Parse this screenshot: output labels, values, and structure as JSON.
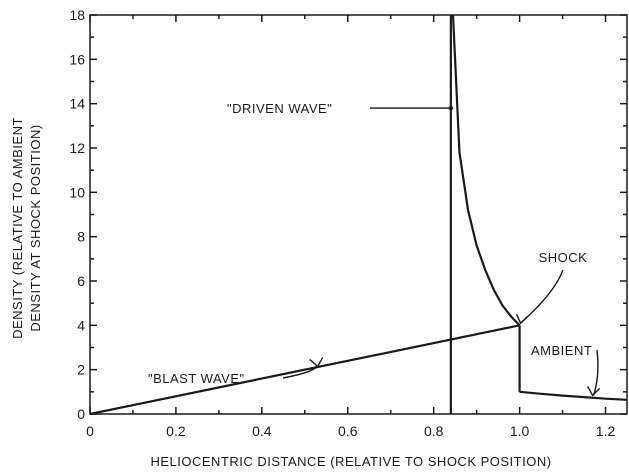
{
  "chart_data": {
    "type": "line",
    "xlabel": "HELIOCENTRIC DISTANCE (RELATIVE TO SHOCK POSITION)",
    "ylabel_lines": [
      "DENSITY (RELATIVE TO AMBIENT",
      "DENSITY AT SHOCK POSITION)"
    ],
    "xlim": [
      0,
      1.25
    ],
    "ylim": [
      0,
      18
    ],
    "x_ticks": [
      0,
      0.2,
      0.4,
      0.6,
      0.8,
      1.0,
      1.2
    ],
    "x_tick_labels": [
      "0",
      "0.2",
      "0.4",
      "0.6",
      "0.8",
      "1.0",
      "1.2"
    ],
    "y_ticks": [
      0,
      2,
      4,
      6,
      8,
      10,
      12,
      14,
      16,
      18
    ],
    "y_tick_labels": [
      "0",
      "2",
      "4",
      "6",
      "8",
      "10",
      "12",
      "14",
      "16",
      "18"
    ],
    "grid": false,
    "series": [
      {
        "label": "\"BLAST WAVE\"",
        "x": [
          0,
          1.0
        ],
        "y": [
          0,
          4.0
        ]
      },
      {
        "label": "\"DRIVEN WAVE\"",
        "x": [
          0.845,
          0.86,
          0.88,
          0.9,
          0.92,
          0.94,
          0.96,
          0.98,
          1.0
        ],
        "y": [
          18,
          11.8,
          9.2,
          7.6,
          6.5,
          5.6,
          4.9,
          4.4,
          4.0
        ]
      },
      {
        "label": "SHOCK",
        "x": [
          1.0,
          1.0
        ],
        "y": [
          4.0,
          1.0
        ]
      },
      {
        "label": "AMBIENT",
        "x": [
          1.0,
          1.05,
          1.1,
          1.15,
          1.2,
          1.25
        ],
        "y": [
          1.0,
          0.91,
          0.83,
          0.76,
          0.69,
          0.64
        ]
      }
    ],
    "vertical_line_x": 0.84,
    "annotations": [
      {
        "text": "\"DRIVEN WAVE\"",
        "target": [
          0.84,
          13.8
        ]
      },
      {
        "text": "SHOCK",
        "target": [
          1.0,
          4.0
        ]
      },
      {
        "text": "\"BLAST WAVE\"",
        "target": [
          0.53,
          2.1
        ]
      },
      {
        "text": "AMBIENT",
        "target": [
          1.17,
          0.75
        ]
      }
    ]
  }
}
